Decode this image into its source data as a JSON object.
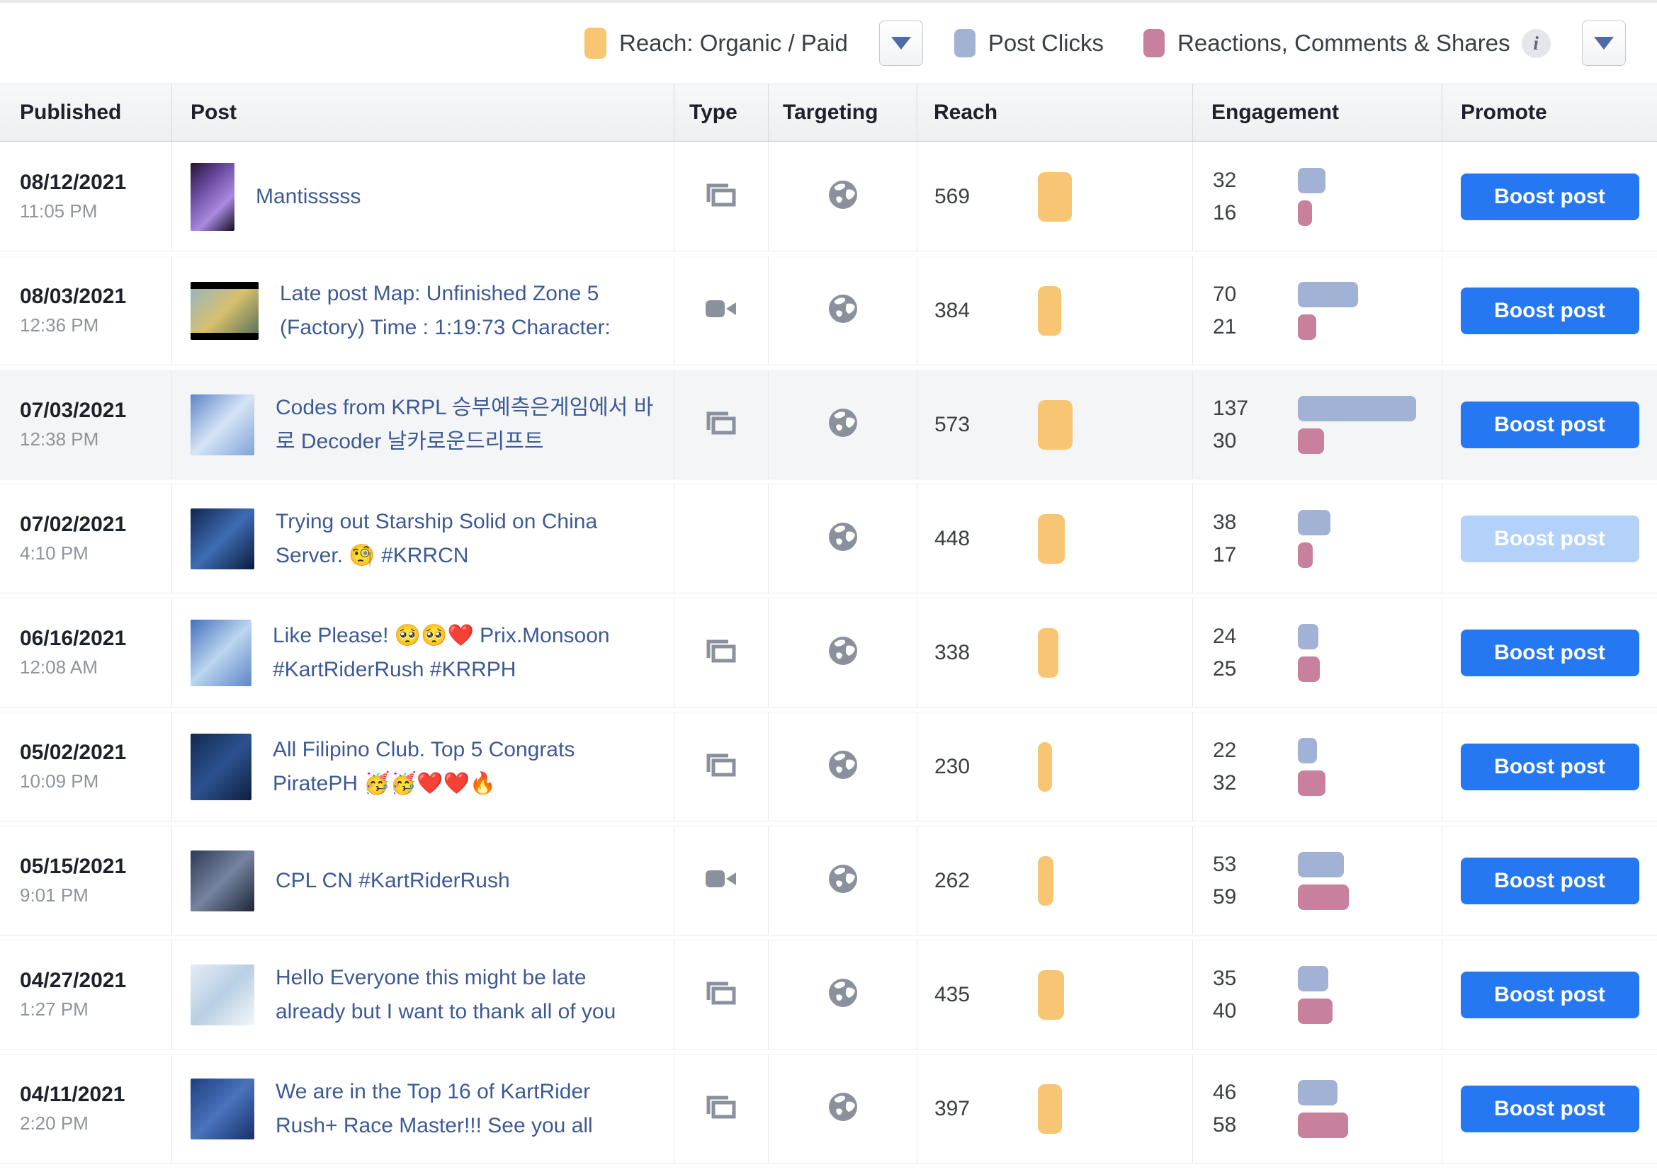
{
  "legend": {
    "reach_label": "Reach: Organic / Paid",
    "post_clicks_label": "Post Clicks",
    "reactions_label": "Reactions, Comments & Shares",
    "info_icon": "i",
    "colors": {
      "reach": "#f8c573",
      "post_clicks": "#a2b2d4",
      "reactions": "#c8809f"
    }
  },
  "table": {
    "columns": [
      "Published",
      "Post",
      "Type",
      "Targeting",
      "Reach",
      "Engagement",
      "Promote"
    ],
    "boost_label": "Boost post",
    "rows": [
      {
        "date": "08/12/2021",
        "time": "11:05 PM",
        "post": "Mantisssss",
        "type": "collage",
        "reach": 569,
        "clicks": 32,
        "reactions": 16,
        "boost_disabled": false,
        "highlighted": false,
        "thumb": {
          "shape": "portrait",
          "colors": [
            "#241433",
            "#6a4a9e",
            "#a98ae0",
            "#130b20"
          ]
        }
      },
      {
        "date": "08/03/2021",
        "time": "12:36 PM",
        "post": "Late post Map: Unfinished Zone 5 (Factory) Time : 1:19:73 Character:",
        "type": "video",
        "reach": 384,
        "clicks": 70,
        "reactions": 21,
        "boost_disabled": false,
        "highlighted": false,
        "thumb": {
          "shape": "landscape",
          "colors": [
            "#8fb6c4",
            "#d8c06e",
            "#4e6b55"
          ]
        }
      },
      {
        "date": "07/03/2021",
        "time": "12:38 PM",
        "post": "Codes from KRPL 승부예측은게임에서 바로 Decoder 날카로운드리프트",
        "type": "collage",
        "reach": 573,
        "clicks": 137,
        "reactions": 30,
        "boost_disabled": false,
        "highlighted": true,
        "thumb": {
          "shape": "square",
          "colors": [
            "#5e86c9",
            "#d6e4f5",
            "#7fa3d9"
          ]
        }
      },
      {
        "date": "07/02/2021",
        "time": "4:10 PM",
        "post": "Trying out Starship Solid on China Server. 🧐 #KRRCN",
        "type": "none",
        "reach": 448,
        "clicks": 38,
        "reactions": 17,
        "boost_disabled": true,
        "highlighted": false,
        "thumb": {
          "shape": "square",
          "colors": [
            "#10264f",
            "#3e6cb4",
            "#0b1b3a"
          ]
        }
      },
      {
        "date": "06/16/2021",
        "time": "12:08 AM",
        "post": "Like Please! 🥺🥺❤️ Prix.Monsoon #KartRiderRush #KRRPH",
        "type": "collage",
        "reach": 338,
        "clicks": 24,
        "reactions": 25,
        "boost_disabled": false,
        "highlighted": false,
        "thumb": {
          "shape": "tall",
          "colors": [
            "#4470bd",
            "#bcd6f0",
            "#5d86c8"
          ]
        }
      },
      {
        "date": "05/02/2021",
        "time": "10:09 PM",
        "post": "All Filipino Club. Top 5 Congrats PiratePH 🥳🥳❤️❤️🔥",
        "type": "collage",
        "reach": 230,
        "clicks": 22,
        "reactions": 32,
        "boost_disabled": false,
        "highlighted": false,
        "thumb": {
          "shape": "tall",
          "colors": [
            "#12294e",
            "#2d5190",
            "#0d1f3c"
          ]
        }
      },
      {
        "date": "05/15/2021",
        "time": "9:01 PM",
        "post": "CPL CN #KartRiderRush",
        "type": "video",
        "reach": 262,
        "clicks": 53,
        "reactions": 59,
        "boost_disabled": false,
        "highlighted": false,
        "thumb": {
          "shape": "square",
          "colors": [
            "#2e3a56",
            "#76849f",
            "#1d2436"
          ]
        }
      },
      {
        "date": "04/27/2021",
        "time": "1:27 PM",
        "post": "Hello Everyone this might be late already but I want to thank all of you",
        "type": "collage",
        "reach": 435,
        "clicks": 35,
        "reactions": 40,
        "boost_disabled": false,
        "highlighted": false,
        "thumb": {
          "shape": "square",
          "colors": [
            "#e3ecf4",
            "#b9cfe3",
            "#f4f8fb"
          ]
        }
      },
      {
        "date": "04/11/2021",
        "time": "2:20 PM",
        "post": "We are in the Top 16 of KartRider Rush+ Race Master!!! See you all",
        "type": "collage",
        "reach": 397,
        "clicks": 46,
        "reactions": 58,
        "boost_disabled": false,
        "highlighted": false,
        "thumb": {
          "shape": "square",
          "colors": [
            "#1d3f7e",
            "#4a73bd",
            "#16306a"
          ]
        }
      }
    ]
  }
}
